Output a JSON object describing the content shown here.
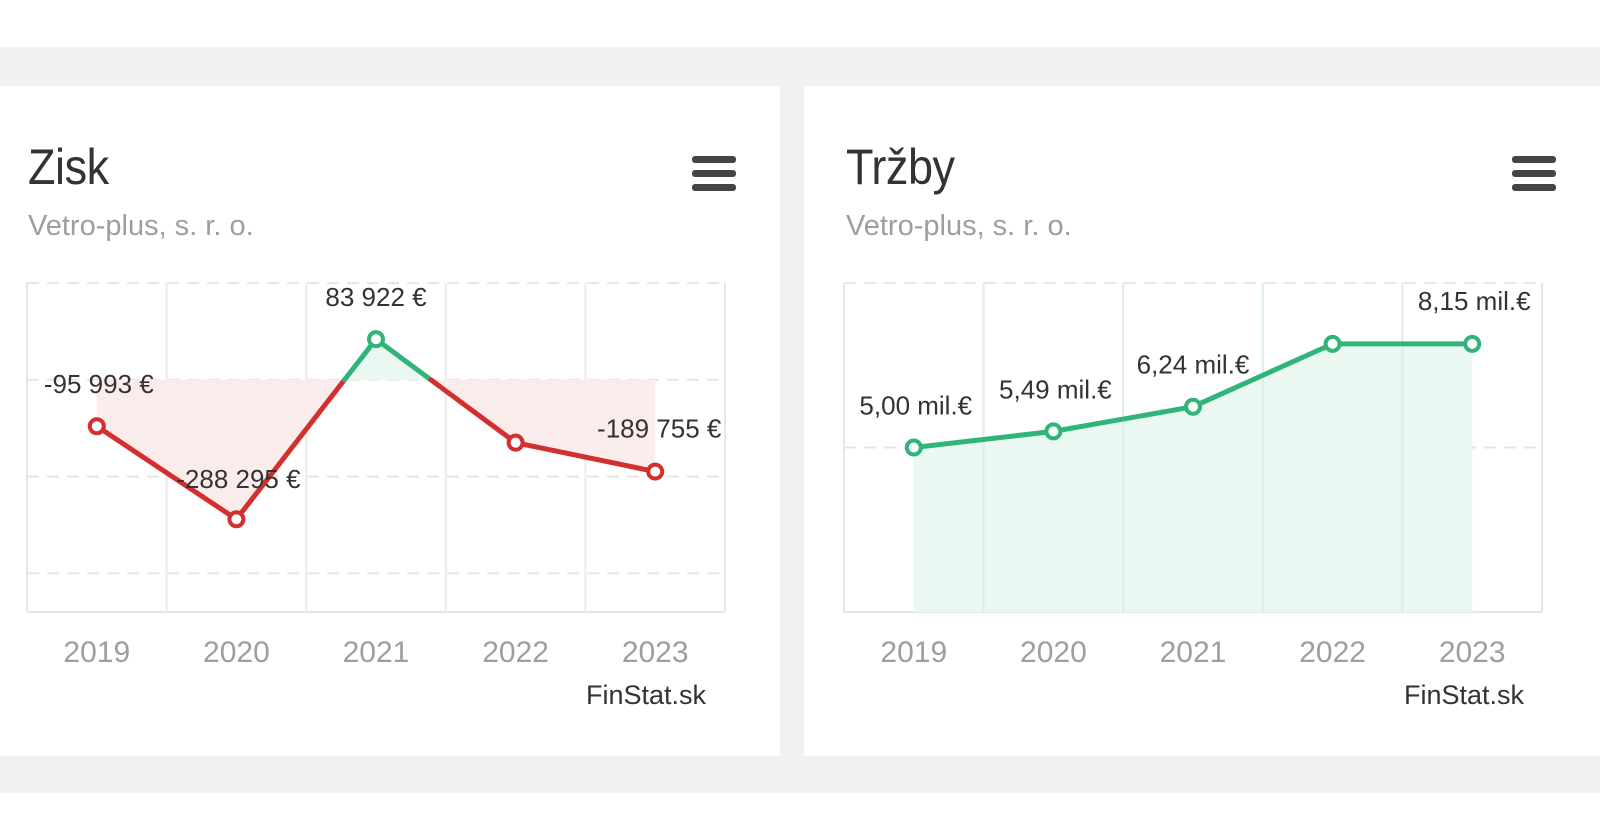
{
  "charts": {
    "profit": {
      "title": "Zisk",
      "subtitle": "Vetro-plus, s. r. o.",
      "menu_icon": "hamburger-menu-icon",
      "credit": "FinStat.sk"
    },
    "revenue": {
      "title": "Tržby",
      "subtitle": "Vetro-plus, s. r. o.",
      "menu_icon": "hamburger-menu-icon",
      "credit": "FinStat.sk"
    }
  },
  "colors": {
    "negative": "#d32f2f",
    "positive": "#2fb57a",
    "negative_fill": "#fbecec",
    "positive_fill": "#eaf8f1",
    "grid": "#e6e6e6",
    "axis_label": "#9e9e9e",
    "data_label": "#333333",
    "background_band": "#f2f1ef"
  },
  "chart_data": [
    {
      "type": "line",
      "title": "Zisk",
      "subtitle": "Vetro-plus, s. r. o.",
      "categories": [
        "2019",
        "2020",
        "2021",
        "2022",
        "2023"
      ],
      "values": [
        -95993,
        -288295,
        83922,
        -130000,
        -189755
      ],
      "data_labels": [
        "-95 993 €",
        "-288 295 €",
        "83 922 €",
        "",
        "-189 755 €"
      ],
      "ylim": [
        -480000,
        200000
      ],
      "gridlines": [
        0,
        -200000,
        -400000
      ],
      "xlabel": "",
      "ylabel": "",
      "grid": true,
      "legend": "none",
      "credit": "FinStat.sk"
    },
    {
      "type": "area",
      "title": "Tržby",
      "subtitle": "Vetro-plus, s. r. o.",
      "categories": [
        "2019",
        "2020",
        "2021",
        "2022",
        "2023"
      ],
      "values": [
        5.0,
        5.49,
        6.24,
        8.15,
        8.15
      ],
      "data_labels": [
        "5,00 mil.€",
        "5,49 mil.€",
        "6,24 mil.€",
        "",
        "8,15 mil.€"
      ],
      "ylim": [
        0,
        10
      ],
      "gridlines": [
        5,
        10
      ],
      "xlabel": "",
      "ylabel": "",
      "grid": true,
      "legend": "none",
      "credit": "FinStat.sk"
    }
  ]
}
